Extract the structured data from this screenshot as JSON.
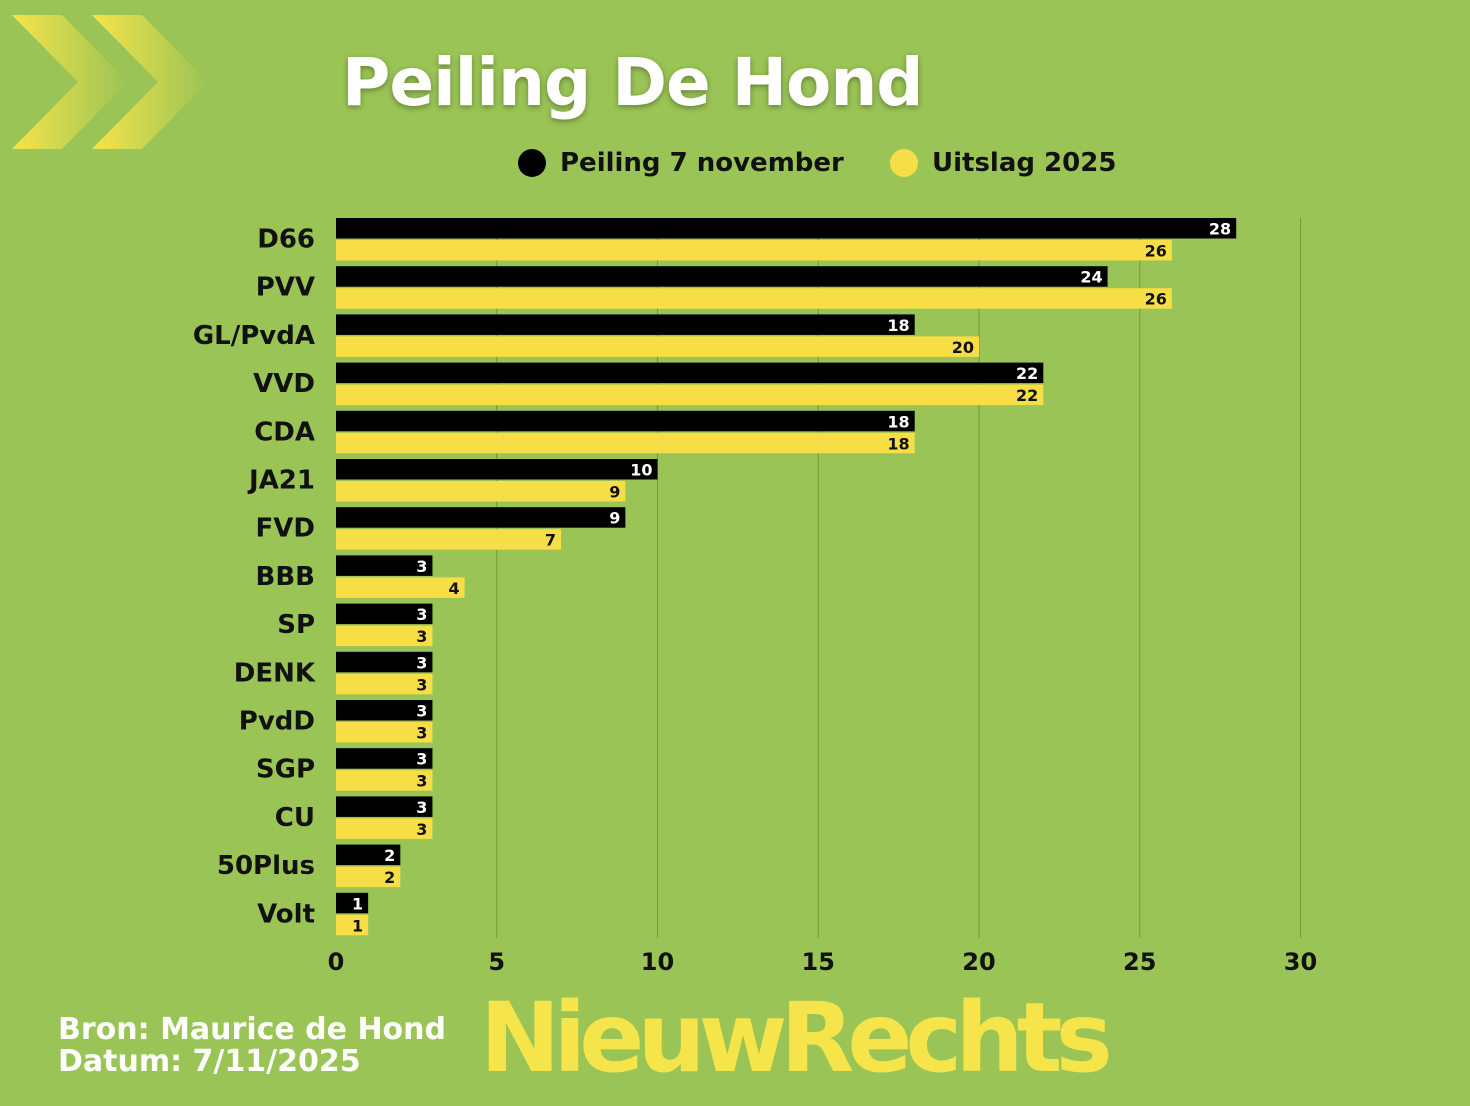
{
  "title": "Peiling De Hond",
  "legend": [
    {
      "label": "Peiling 7 november",
      "color": "#000000"
    },
    {
      "label": "Uitslag 2025",
      "color": "#f7de46"
    }
  ],
  "chart_data": {
    "type": "bar",
    "orientation": "horizontal",
    "categories": [
      "D66",
      "PVV",
      "GL/PvdA",
      "VVD",
      "CDA",
      "JA21",
      "FVD",
      "BBB",
      "SP",
      "DENK",
      "PvdD",
      "SGP",
      "CU",
      "50Plus",
      "Volt"
    ],
    "series": [
      {
        "name": "Peiling 7 november",
        "color": "#000000",
        "label_color": "#ffffff",
        "values": [
          28,
          24,
          18,
          22,
          18,
          10,
          9,
          3,
          3,
          3,
          3,
          3,
          3,
          2,
          1
        ]
      },
      {
        "name": "Uitslag 2025",
        "color": "#f7de46",
        "label_color": "#111111",
        "values": [
          26,
          26,
          20,
          22,
          18,
          9,
          7,
          4,
          3,
          3,
          3,
          3,
          3,
          2,
          1
        ]
      }
    ],
    "xlim": [
      0,
      30
    ],
    "xticks": [
      "0",
      "5",
      "10",
      "15",
      "20",
      "25",
      "30"
    ],
    "grid": true,
    "legend_position": "top"
  },
  "footer": {
    "source": "Bron: Maurice de Hond",
    "date": "Datum: 7/11/2025"
  },
  "logo_text": "NieuwRechts",
  "colors": {
    "background": "#9ac455",
    "accent": "#f5e44a",
    "grid": "#6f9a3a"
  }
}
